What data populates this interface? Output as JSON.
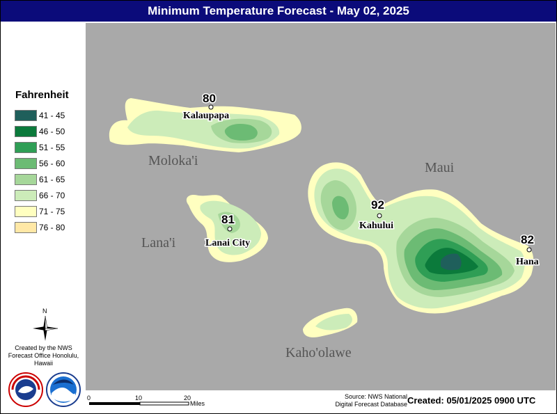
{
  "title": "Minimum Temperature Forecast - May 02, 2025",
  "legend": {
    "title": "Fahrenheit",
    "items": [
      {
        "label": "41 - 45",
        "color": "#1f5f5b"
      },
      {
        "label": "46 - 50",
        "color": "#0b7a3b"
      },
      {
        "label": "51 - 55",
        "color": "#2f9e55"
      },
      {
        "label": "56 - 60",
        "color": "#6cbb74"
      },
      {
        "label": "61 - 65",
        "color": "#a6d79a"
      },
      {
        "label": "66 - 70",
        "color": "#ccecb9"
      },
      {
        "label": "71 - 75",
        "color": "#ffffc0"
      },
      {
        "label": "76 - 80",
        "color": "#ffe8a6"
      }
    ]
  },
  "islands": {
    "molokai": "Moloka'i",
    "lanai": "Lana'i",
    "maui": "Maui",
    "kahoolawe": "Kaho'olawe"
  },
  "stations": [
    {
      "name": "Kalaupapa",
      "temp": "80"
    },
    {
      "name": "Lanai City",
      "temp": "81"
    },
    {
      "name": "Kahului",
      "temp": "92"
    },
    {
      "name": "Hana",
      "temp": "82"
    }
  ],
  "compass_label": "N",
  "credits": "Created by the NWS Forecast Office Honolulu, Hawaii",
  "scale": {
    "ticks": [
      "0",
      "10",
      "20"
    ],
    "unit": "Miles"
  },
  "source_line1": "Source: NWS National",
  "source_line2": "Digital Forecast Database",
  "created": "Created: 05/01/2025 0900 UTC",
  "map_background": "#a9a9a9",
  "title_bar_color": "#0b0b7a"
}
